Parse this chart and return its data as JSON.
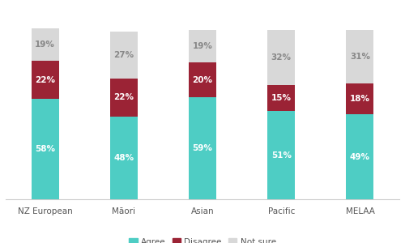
{
  "categories": [
    "NZ European",
    "Māori",
    "Asian",
    "Pacific",
    "MELAA"
  ],
  "agree": [
    58,
    48,
    59,
    51,
    49
  ],
  "disagree": [
    22,
    22,
    20,
    15,
    18
  ],
  "not_sure": [
    19,
    27,
    19,
    32,
    31
  ],
  "color_agree": "#4ECDC4",
  "color_disagree": "#9B2335",
  "color_not_sure": "#D8D8D8",
  "bar_width": 0.35,
  "figsize": [
    5.0,
    3.0
  ],
  "dpi": 100,
  "bg_color": "#FFFFFF",
  "legend_labels": [
    "Agree",
    "Disagree",
    "Not sure"
  ],
  "text_color_dark": "#FFFFFF",
  "text_color_light": "#888888",
  "label_fontsize": 7.5,
  "tick_fontsize": 7.5,
  "ylim": [
    0,
    112
  ]
}
